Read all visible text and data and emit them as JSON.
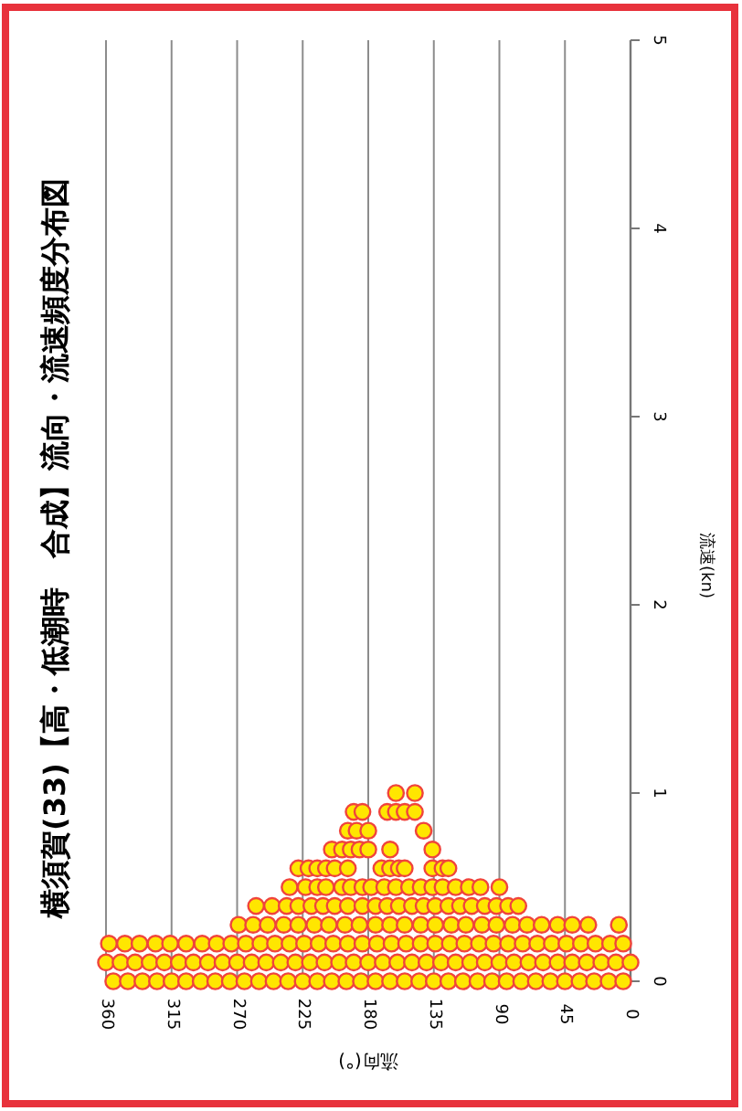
{
  "chart_data": {
    "type": "scatter",
    "title": "横須賀(33)【高・低潮時　合成】流向・流速頻度分布図",
    "xlabel": "流向(°)",
    "ylabel": "流速(kn)",
    "xlim": [
      360,
      0
    ],
    "xticks": [
      360,
      315,
      270,
      225,
      180,
      135,
      90,
      45,
      0
    ],
    "ylim": [
      0,
      5
    ],
    "yticks": [
      0,
      1,
      2,
      3,
      4,
      5
    ],
    "grid": "x",
    "marker": "circle",
    "series": [
      {
        "color": "#ffe600",
        "values": [
          0,
          0,
          0,
          0,
          0,
          0,
          0,
          0,
          0,
          0,
          0,
          0,
          0,
          0,
          0,
          0,
          0,
          0,
          0,
          0,
          0,
          0,
          0,
          0,
          0,
          0,
          0,
          0,
          0,
          0,
          0,
          0,
          0,
          0,
          0,
          0,
          0.1,
          0.1,
          0.1,
          0.1,
          0.1,
          0.1,
          0.1,
          0.1,
          0.1,
          0.1,
          0.1,
          0.1,
          0.1,
          0.1,
          0.1,
          0.1,
          0.1,
          0.1,
          0.1,
          0.1,
          0.1,
          0.1,
          0.1,
          0.1,
          0.1,
          0.1,
          0.1,
          0.1,
          0.1,
          0.1,
          0.1,
          0.1,
          0.1,
          0.1,
          0.1,
          0.1,
          0.1,
          0.2,
          0.2,
          0.2,
          0.2,
          0.2,
          0.2,
          0.2,
          0.2,
          0.2,
          0.2,
          0.2,
          0.2,
          0.2,
          0.2,
          0.2,
          0.2,
          0.2,
          0.2,
          0.2,
          0.2,
          0.2,
          0.2,
          0.2,
          0.2,
          0.2,
          0.2,
          0.2,
          0.2,
          0.2,
          0.2,
          0.2,
          0.2,
          0.2,
          0.2,
          0.2,
          0.2,
          0.3,
          0.3,
          0.3,
          0.3,
          0.3,
          0.3,
          0.3,
          0.3,
          0.3,
          0.3,
          0.3,
          0.3,
          0.3,
          0.3,
          0.3,
          0.3,
          0.3,
          0.3,
          0.3,
          0.3,
          0.3,
          0.3,
          0.3,
          0.3,
          0.3,
          0.4,
          0.4,
          0.4,
          0.4,
          0.4,
          0.4,
          0.4,
          0.4,
          0.4,
          0.4,
          0.4,
          0.4,
          0.4,
          0.4,
          0.4,
          0.4,
          0.4,
          0.4,
          0.4,
          0.4,
          0.4,
          0.4,
          0.5,
          0.5,
          0.5,
          0.5,
          0.5,
          0.5,
          0.5,
          0.5,
          0.5,
          0.5,
          0.5,
          0.5,
          0.5,
          0.5,
          0.5,
          0.5,
          0.5,
          0.5,
          0.6,
          0.6,
          0.6,
          0.6,
          0.6,
          0.6,
          0.6,
          0.6,
          0.6,
          0.6,
          0.6,
          0.6,
          0.6,
          0.7,
          0.7,
          0.7,
          0.7,
          0.7,
          0.7,
          0.7,
          0.8,
          0.8,
          0.8,
          0.8,
          0.9,
          0.9,
          0.9,
          0.9,
          0.9,
          0.9,
          1,
          1
        ],
        "x": [
          355,
          345,
          335,
          325,
          315,
          305,
          295,
          285,
          275,
          265,
          255,
          245,
          235,
          225,
          215,
          205,
          195,
          185,
          175,
          165,
          155,
          145,
          135,
          125,
          115,
          105,
          95,
          85,
          75,
          65,
          55,
          45,
          35,
          25,
          15,
          5,
          360,
          350,
          340,
          330,
          320,
          310,
          300,
          290,
          280,
          270,
          260,
          250,
          240,
          230,
          220,
          210,
          200,
          190,
          180,
          170,
          160,
          150,
          140,
          130,
          120,
          110,
          100,
          90,
          80,
          70,
          60,
          50,
          40,
          30,
          20,
          10,
          0,
          358,
          347,
          337,
          326,
          316,
          305,
          294,
          284,
          274,
          264,
          254,
          244,
          234,
          224,
          214,
          204,
          194,
          184,
          174,
          164,
          154,
          144,
          134,
          124,
          114,
          104,
          94,
          84,
          74,
          64,
          54,
          44,
          34,
          24,
          14,
          5,
          269,
          259,
          249,
          238,
          228,
          217,
          207,
          196,
          186,
          175,
          165,
          155,
          144,
          134,
          123,
          113,
          102,
          92,
          81,
          71,
          61,
          50,
          40,
          29,
          8,
          257,
          246,
          236,
          228,
          219,
          211,
          203,
          194,
          184,
          175,
          167,
          159,
          150,
          142,
          134,
          125,
          117,
          109,
          100,
          92,
          84,
          77,
          234,
          223,
          215,
          209,
          198,
          192,
          184,
          178,
          169,
          161,
          152,
          144,
          136,
          129,
          120,
          111,
          103,
          90,
          228,
          221,
          215,
          209,
          203,
          194,
          171,
          165,
          159,
          155,
          136,
          129,
          125,
          205,
          198,
          192,
          186,
          180,
          165,
          136,
          194,
          188,
          180,
          142,
          190,
          184,
          167,
          161,
          155,
          148,
          161,
          148
        ]
      }
    ]
  }
}
